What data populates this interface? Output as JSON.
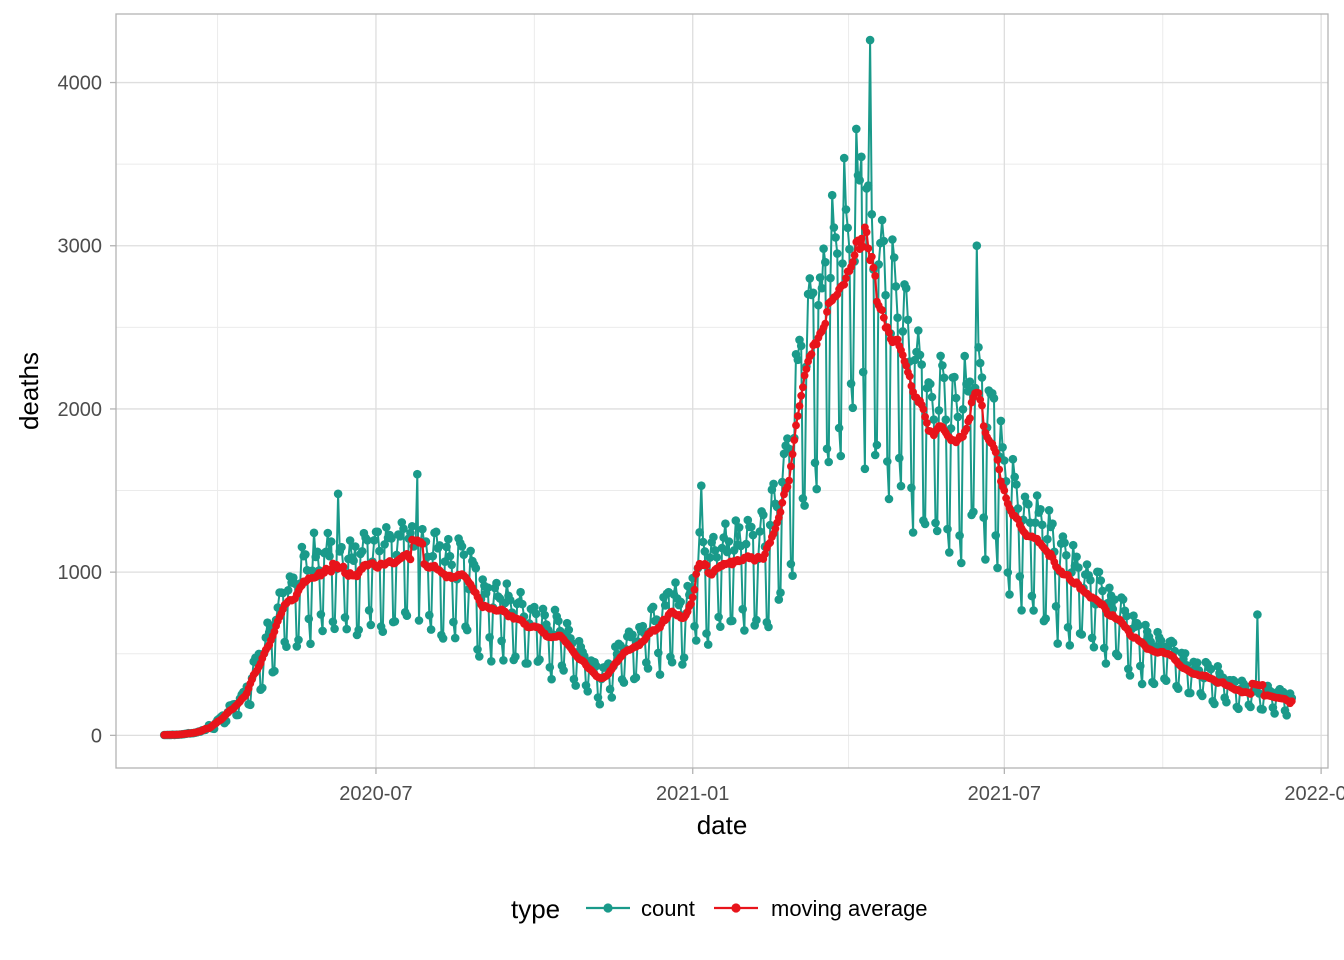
{
  "chart_data": {
    "type": "line",
    "xlabel": "date",
    "ylabel": "deaths",
    "x_range": [
      "2020-02-01",
      "2022-01-05"
    ],
    "ylim": [
      -200,
      4420
    ],
    "x_ticks": [
      {
        "date": "2020-07-01",
        "label": "2020-07"
      },
      {
        "date": "2021-01-01",
        "label": "2021-01"
      },
      {
        "date": "2021-07-01",
        "label": "2021-07"
      },
      {
        "date": "2022-01-01",
        "label": "2022-01"
      }
    ],
    "y_ticks": [
      0,
      1000,
      2000,
      3000,
      4000
    ],
    "grid": true,
    "legend": {
      "title": "type",
      "placement": "bottom",
      "entries": [
        {
          "label": "count",
          "color": "#1a9a8a"
        },
        {
          "label": "moving average",
          "color": "#e8141b"
        }
      ]
    },
    "series": [
      {
        "name": "count",
        "color": "#1a9a8a",
        "weekly_pattern": [
          0.68,
          0.62,
          1.05,
          1.2,
          1.17,
          1.14,
          1.1
        ],
        "anchor_dates": [
          "2020-02-29",
          "2020-03-10",
          "2020-03-20",
          "2020-03-31",
          "2020-04-15",
          "2020-05-01",
          "2020-05-15",
          "2020-05-25",
          "2020-06-05",
          "2020-06-20",
          "2020-07-05",
          "2020-07-20",
          "2020-08-05",
          "2020-08-20",
          "2020-09-05",
          "2020-09-20",
          "2020-10-05",
          "2020-10-20",
          "2020-11-01",
          "2020-11-10",
          "2020-11-20",
          "2020-12-01",
          "2020-12-10",
          "2020-12-20",
          "2020-12-28",
          "2021-01-05",
          "2021-01-20",
          "2021-02-05",
          "2021-02-15",
          "2021-02-25",
          "2021-03-05",
          "2021-03-15",
          "2021-03-25",
          "2021-04-02",
          "2021-04-10",
          "2021-04-20",
          "2021-05-01",
          "2021-05-15",
          "2021-05-25",
          "2021-06-05",
          "2021-06-15",
          "2021-06-25",
          "2021-07-05",
          "2021-07-20",
          "2021-08-05",
          "2021-08-20",
          "2021-09-05",
          "2021-09-20",
          "2021-10-05",
          "2021-10-20",
          "2021-11-05",
          "2021-11-20",
          "2021-12-05",
          "2021-12-15"
        ],
        "anchor_values": [
          2,
          5,
          20,
          80,
          220,
          600,
          900,
          980,
          1010,
          990,
          1050,
          1080,
          1030,
          960,
          800,
          720,
          660,
          560,
          400,
          330,
          480,
          560,
          650,
          780,
          700,
          1000,
          1050,
          1060,
          1150,
          1600,
          2100,
          2400,
          2850,
          2920,
          3060,
          2600,
          2300,
          1950,
          1850,
          1800,
          2030,
          1780,
          1400,
          1180,
          980,
          850,
          700,
          560,
          480,
          380,
          320,
          250,
          240,
          210
        ],
        "outlier_dates": [
          "2020-06-09",
          "2020-07-25",
          "2021-01-06",
          "2021-04-14",
          "2021-11-25",
          "2021-06-15"
        ],
        "outlier_values": [
          1480,
          1600,
          1530,
          4260,
          740,
          3000
        ]
      },
      {
        "name": "moving average",
        "color": "#e8141b"
      }
    ]
  }
}
